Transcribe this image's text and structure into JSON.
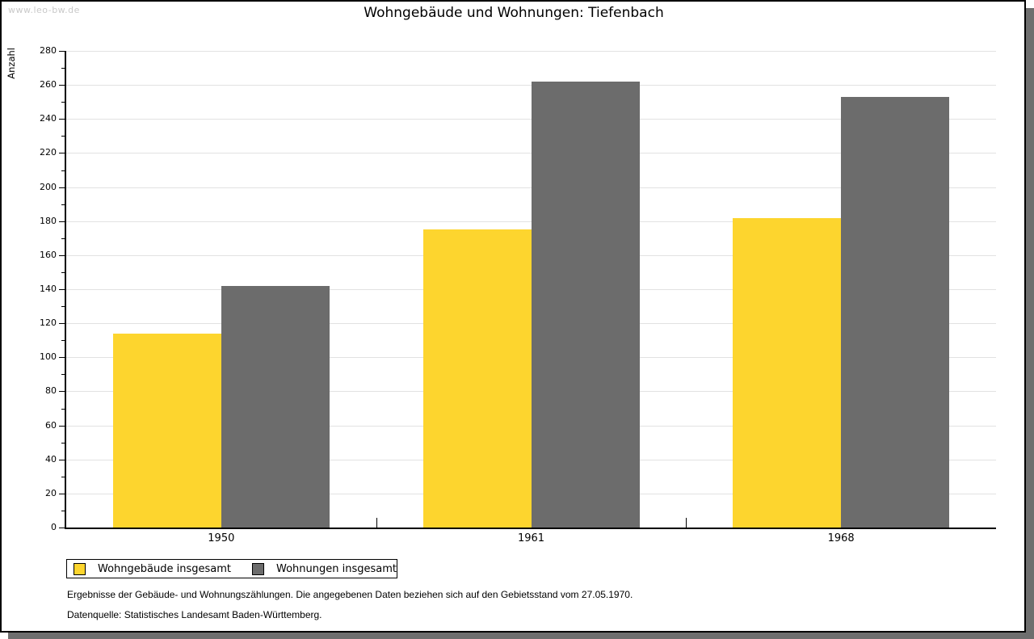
{
  "watermark": "www.leo-bw.de",
  "chart_data": {
    "type": "bar",
    "title": "Wohngebäude und Wohnungen: Tiefenbach",
    "ylabel": "Anzahl",
    "xlabel": "",
    "categories": [
      "1950",
      "1961",
      "1968"
    ],
    "series": [
      {
        "name": "Wohngebäude insgesamt",
        "color": "#fdd52e",
        "values": [
          114,
          175,
          182
        ]
      },
      {
        "name": "Wohnungen insgesamt",
        "color": "#6c6c6c",
        "values": [
          142,
          262,
          253
        ]
      }
    ],
    "ylim": [
      0,
      280
    ],
    "ytick_major": 20,
    "ytick_minor": 10,
    "grid": "horizontal-major",
    "legend_position": "bottom-left"
  },
  "footnotes": [
    "Ergebnisse der Gebäude- und Wohnungszählungen. Die angegebenen Daten beziehen sich auf den Gebietsstand vom 27.05.1970.",
    "Datenquelle: Statistisches Landesamt Baden-Württemberg."
  ],
  "colors": {
    "axis": "#000000",
    "grid": "#e2e2e2",
    "shadow": "#6e6e6e",
    "watermark": "#c9c9c9",
    "background": "#ffffff"
  }
}
